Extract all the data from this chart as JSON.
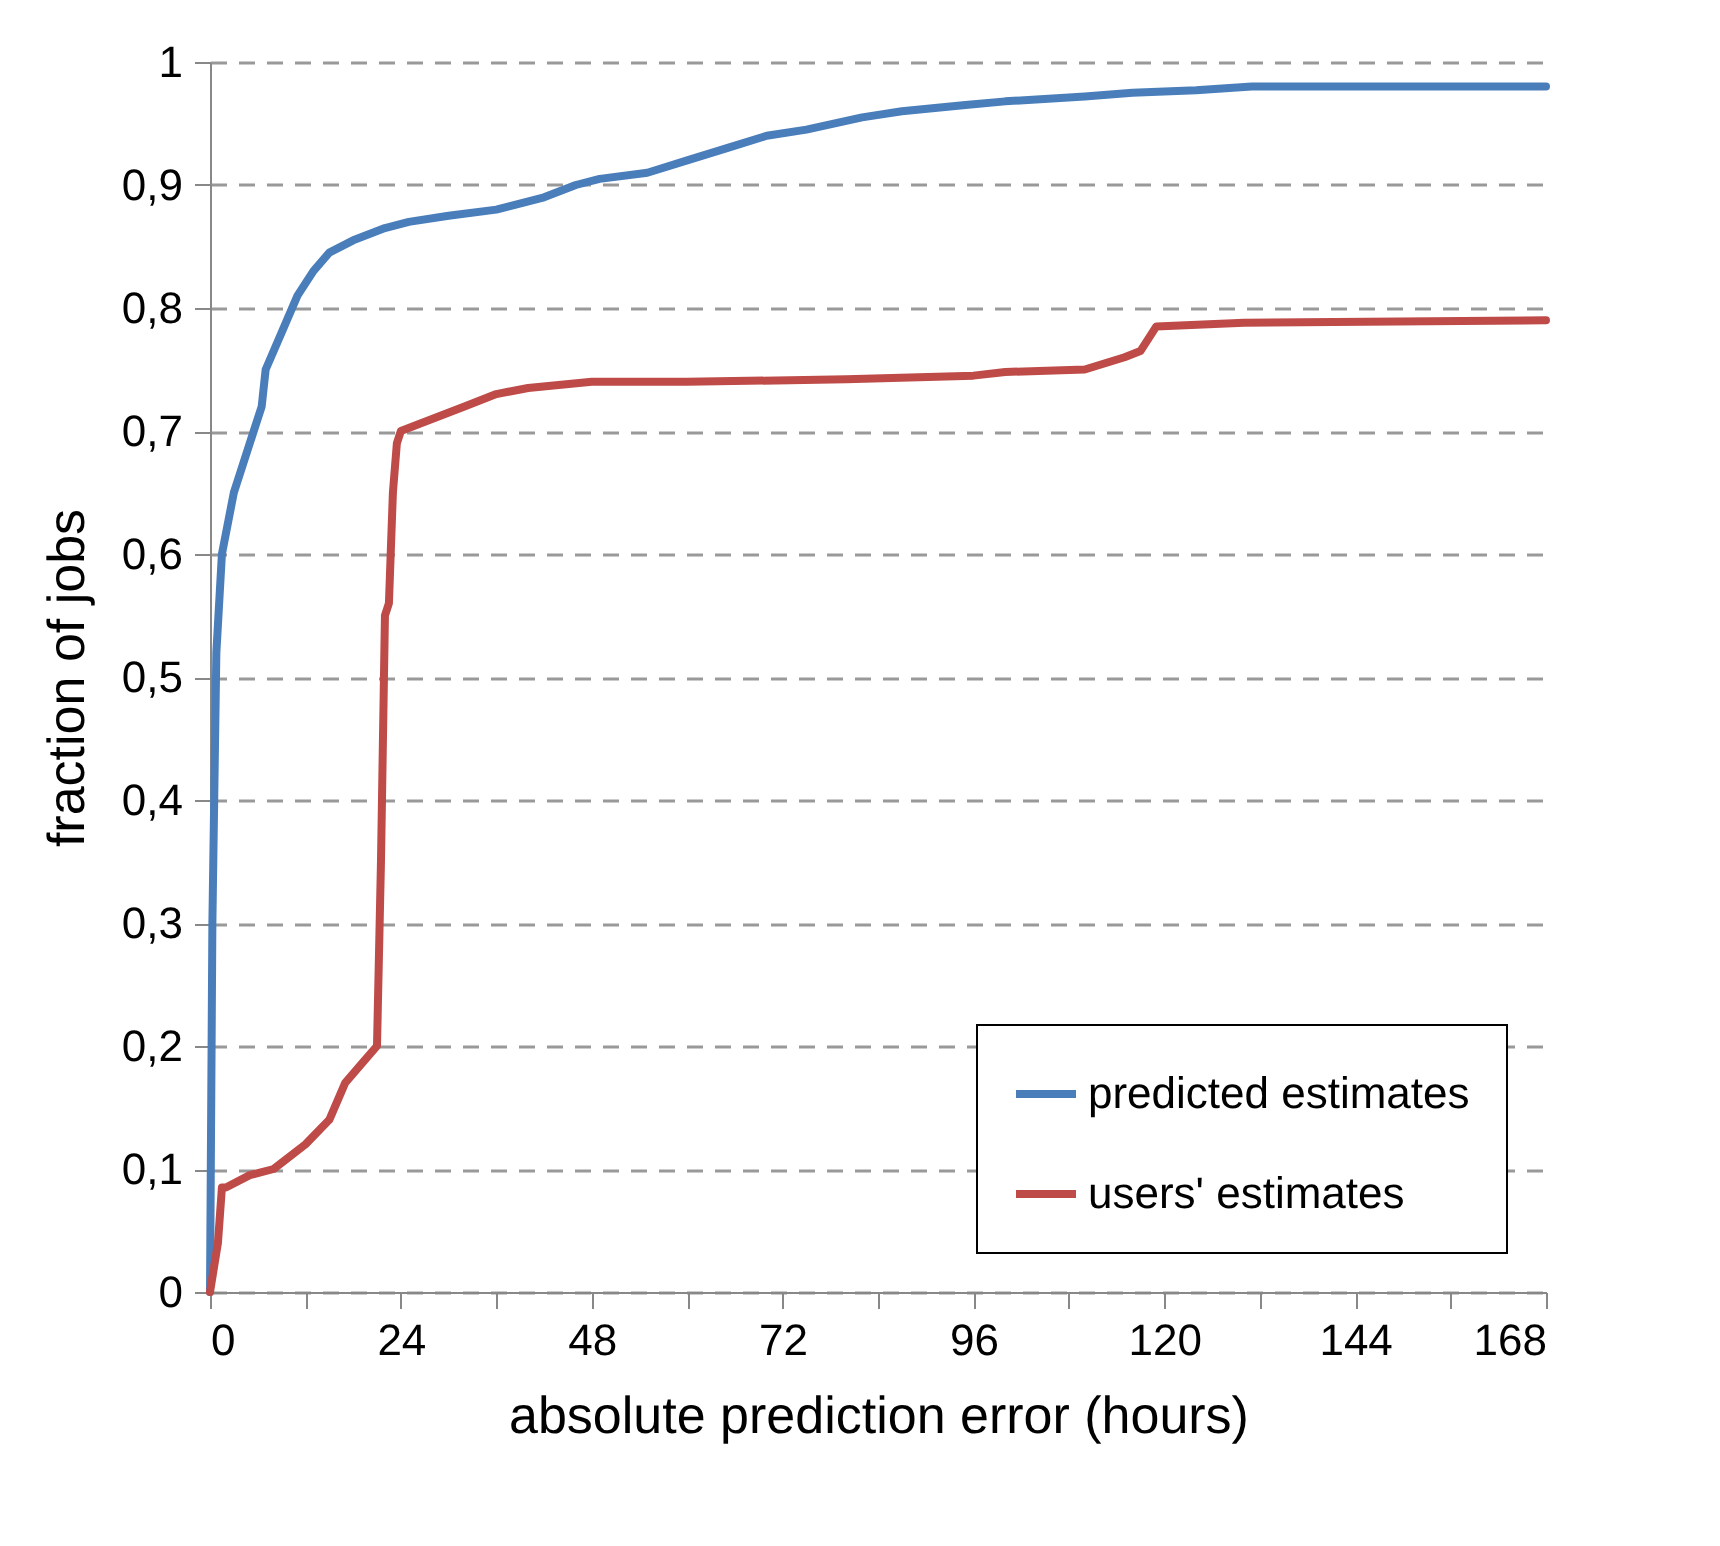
{
  "chart_data": {
    "type": "line",
    "xlabel": "absolute prediction error (hours)",
    "ylabel": "fraction of jobs",
    "xlim": [
      0,
      168
    ],
    "ylim": [
      0,
      1
    ],
    "xticks": [
      0,
      {
        "value": 12,
        "label": null
      },
      24,
      {
        "value": 36,
        "label": null
      },
      48,
      {
        "value": 60,
        "label": null
      },
      72,
      {
        "value": 84,
        "label": null
      },
      96,
      {
        "value": 108,
        "label": null
      },
      120,
      {
        "value": 132,
        "label": null
      },
      144,
      {
        "value": 156,
        "label": null
      },
      168
    ],
    "yticks": [
      0,
      {
        "value": 0.1,
        "label": "0,1"
      },
      {
        "value": 0.2,
        "label": "0,2"
      },
      {
        "value": 0.3,
        "label": "0,3"
      },
      {
        "value": 0.4,
        "label": "0,4"
      },
      {
        "value": 0.5,
        "label": "0,5"
      },
      {
        "value": 0.6,
        "label": "0,6"
      },
      {
        "value": 0.7,
        "label": "0,7"
      },
      {
        "value": 0.8,
        "label": "0,8"
      },
      {
        "value": 0.9,
        "label": "0,9"
      },
      1
    ],
    "grid": "y",
    "legend": "bottom right",
    "line_style": "solid",
    "marker": "none",
    "series": [
      {
        "name": "predicted estimates",
        "color": "#4a7ebb",
        "x": [
          0,
          0.3,
          0.8,
          1.5,
          3,
          5,
          6.5,
          7,
          9,
          11,
          13,
          15,
          18,
          22,
          25,
          30,
          36,
          42,
          46,
          49,
          55,
          60,
          65,
          70,
          75,
          82,
          87,
          95,
          100,
          110,
          116,
          124,
          131,
          150,
          168
        ],
        "values": [
          0,
          0.3,
          0.52,
          0.6,
          0.65,
          0.69,
          0.72,
          0.75,
          0.78,
          0.81,
          0.83,
          0.845,
          0.855,
          0.865,
          0.87,
          0.875,
          0.88,
          0.89,
          0.9,
          0.905,
          0.91,
          0.92,
          0.93,
          0.94,
          0.945,
          0.955,
          0.96,
          0.965,
          0.968,
          0.972,
          0.975,
          0.977,
          0.98,
          0.98,
          0.98
        ]
      },
      {
        "name": "users' estimates",
        "color": "#be4b48",
        "x": [
          0,
          1,
          1.5,
          2,
          5,
          8,
          12,
          15,
          17,
          19,
          21,
          21.5,
          22,
          22.5,
          23,
          23.5,
          24,
          28,
          32,
          36,
          40,
          48,
          60,
          80,
          96,
          100,
          110,
          115,
          117,
          119,
          130,
          168
        ],
        "values": [
          0,
          0.04,
          0.085,
          0.085,
          0.095,
          0.1,
          0.12,
          0.14,
          0.17,
          0.185,
          0.2,
          0.35,
          0.55,
          0.56,
          0.65,
          0.69,
          0.7,
          0.71,
          0.72,
          0.73,
          0.735,
          0.74,
          0.74,
          0.742,
          0.745,
          0.748,
          0.75,
          0.76,
          0.765,
          0.785,
          0.788,
          0.79
        ]
      }
    ]
  }
}
